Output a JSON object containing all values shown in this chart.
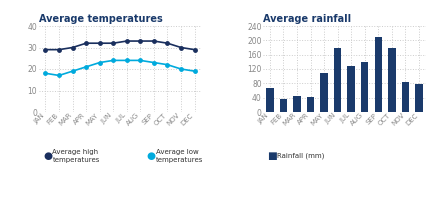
{
  "months": [
    "JAN",
    "FEB",
    "MAR",
    "APR",
    "MAY",
    "JUN",
    "JUL",
    "AUG",
    "SEP",
    "OCT",
    "NOV",
    "DEC"
  ],
  "avg_high": [
    29,
    29,
    30,
    32,
    32,
    32,
    33,
    33,
    33,
    32,
    30,
    29
  ],
  "avg_low": [
    18,
    17,
    19,
    21,
    23,
    24,
    24,
    24,
    23,
    22,
    20,
    19
  ],
  "rainfall": [
    68,
    37,
    45,
    43,
    110,
    180,
    128,
    140,
    210,
    178,
    85,
    78
  ],
  "temp_ylim": [
    0,
    40
  ],
  "rain_ylim": [
    0,
    240
  ],
  "temp_yticks": [
    0,
    10,
    20,
    30,
    40
  ],
  "rain_yticks": [
    0,
    40,
    80,
    120,
    160,
    200,
    240
  ],
  "title_temp": "Average temperatures",
  "title_rain": "Average rainfall",
  "legend_high": "Average high\ntemperatures",
  "legend_low": "Average low\ntemperatures",
  "legend_rain": "Rainfall (mm)",
  "color_high": "#1a2f5e",
  "color_low": "#00aadd",
  "color_rain": "#1a3a6b",
  "color_grid": "#cccccc",
  "title_color": "#1a3a6b",
  "label_color": "#888888",
  "background": "#ffffff"
}
